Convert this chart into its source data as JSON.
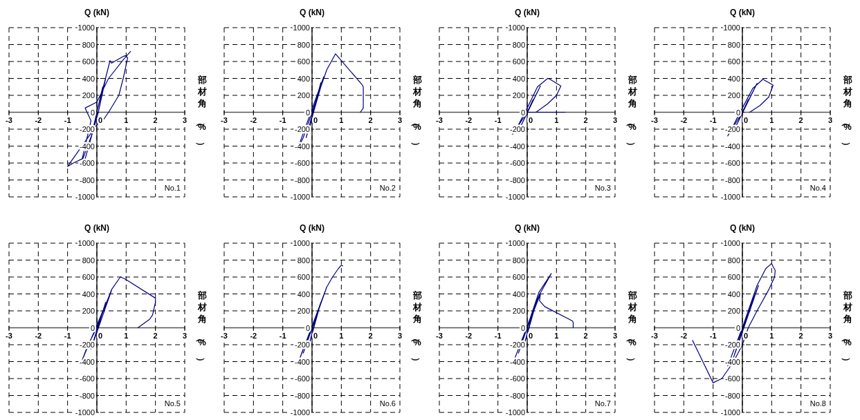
{
  "chart_data": [
    {
      "type": "line",
      "title": "Q (kN)",
      "xlabel": "部材角（%）",
      "annotations": [
        "No.1"
      ],
      "xlim": [
        -3,
        3
      ],
      "xticks": [
        -3,
        -2,
        -1,
        0,
        1,
        2,
        3
      ],
      "ylim": [
        -1000,
        1000
      ],
      "yticks": [
        -1000,
        -800,
        -600,
        -400,
        -200,
        0,
        200,
        400,
        600,
        800,
        1000
      ],
      "grid": true,
      "series": [
        {
          "color": "#000080",
          "x": [
            0,
            0.1,
            0,
            -0.1,
            0,
            0.2,
            0,
            -0.2,
            0.05,
            0.3,
            0.05,
            -0.4,
            -0.5,
            -0.1,
            0,
            0.45,
            0.5,
            0.7,
            0.9,
            1,
            1.05,
            0.9,
            0.75,
            0.4,
            0.2,
            0,
            -1,
            -0.8,
            -0.5,
            -0.2,
            -0.4,
            0,
            0.4,
            0.9,
            1.15
          ],
          "values": [
            0,
            150,
            0,
            -150,
            0,
            300,
            0,
            -300,
            0,
            400,
            0,
            -550,
            -570,
            -200,
            0,
            610,
            580,
            620,
            660,
            670,
            640,
            400,
            200,
            0,
            -100,
            -150,
            -640,
            -600,
            -550,
            -100,
            50,
            120,
            400,
            620,
            720
          ]
        }
      ]
    },
    {
      "type": "line",
      "title": "Q (kN)",
      "xlabel": "部材角（%）",
      "annotations": [
        "No.2"
      ],
      "xlim": [
        -3,
        3
      ],
      "xticks": [
        -3,
        -2,
        -1,
        0,
        1,
        2,
        3
      ],
      "ylim": [
        -1000,
        1000
      ],
      "yticks": [
        -1000,
        -800,
        -600,
        -400,
        -200,
        0,
        200,
        400,
        600,
        800,
        1000
      ],
      "grid": true,
      "series": [
        {
          "color": "#000080",
          "x": [
            0,
            0.2,
            -0.1,
            0.3,
            -0.2,
            0.4,
            -0.5,
            -0.3,
            0,
            0.5,
            0.8,
            1.7,
            1.75,
            1.75,
            1.65
          ],
          "values": [
            0,
            200,
            -200,
            350,
            -300,
            420,
            -440,
            -300,
            0,
            500,
            690,
            330,
            300,
            50,
            0
          ]
        }
      ]
    },
    {
      "type": "line",
      "title": "Q (kN)",
      "xlabel": "部材角（%）",
      "annotations": [
        "No.3"
      ],
      "xlim": [
        -3,
        3
      ],
      "xticks": [
        -3,
        -2,
        -1,
        0,
        1,
        2,
        3
      ],
      "ylim": [
        -1000,
        1000
      ],
      "yticks": [
        -1000,
        -800,
        -600,
        -400,
        -200,
        0,
        200,
        400,
        600,
        800,
        1000
      ],
      "grid": true,
      "series": [
        {
          "color": "#000080",
          "x": [
            0,
            0.2,
            -0.2,
            0.45,
            0,
            -0.5,
            -0.3,
            0,
            0.35,
            0.7,
            0.75,
            1.15,
            1,
            0.7,
            0.3,
            0,
            1.3
          ],
          "values": [
            0,
            150,
            -150,
            310,
            0,
            -260,
            -150,
            50,
            300,
            400,
            395,
            310,
            200,
            100,
            0,
            0,
            0
          ]
        }
      ]
    },
    {
      "type": "line",
      "title": "Q (kN)",
      "xlabel": "部材角（%）",
      "annotations": [
        "No.4"
      ],
      "xlim": [
        -3,
        3
      ],
      "xticks": [
        -3,
        -2,
        -1,
        0,
        1,
        2,
        3
      ],
      "ylim": [
        -1000,
        1000
      ],
      "yticks": [
        -1000,
        -800,
        -600,
        -400,
        -200,
        0,
        200,
        400,
        600,
        800,
        1000
      ],
      "grid": true,
      "series": [
        {
          "color": "#000080",
          "x": [
            0,
            0.2,
            -0.2,
            0.5,
            0,
            -0.5,
            -0.3,
            0,
            0.35,
            0.7,
            1.05,
            0.9,
            0.6,
            0.25
          ],
          "values": [
            0,
            150,
            -150,
            340,
            0,
            -280,
            -150,
            50,
            280,
            390,
            320,
            180,
            80,
            0
          ]
        }
      ]
    },
    {
      "type": "line",
      "title": "Q (kN)",
      "xlabel": "部材角（%）",
      "annotations": [
        "No.5"
      ],
      "xlim": [
        -3,
        3
      ],
      "xticks": [
        -3,
        -2,
        -1,
        0,
        1,
        2,
        3
      ],
      "ylim": [
        -1000,
        1000
      ],
      "yticks": [
        -1000,
        -800,
        -600,
        -400,
        -200,
        0,
        200,
        400,
        600,
        800,
        1000
      ],
      "grid": true,
      "series": [
        {
          "color": "#000080",
          "x": [
            0,
            0.2,
            -0.1,
            0.3,
            -0.2,
            0.5,
            -0.5,
            -0.3,
            0,
            0.5,
            0.8,
            0.95,
            2,
            2,
            1.9,
            1.8,
            1.4
          ],
          "values": [
            0,
            200,
            -150,
            300,
            -250,
            440,
            -380,
            -200,
            0,
            450,
            600,
            580,
            350,
            300,
            150,
            100,
            0
          ]
        }
      ]
    },
    {
      "type": "line",
      "title": "Q (kN)",
      "xlabel": "部材角（%）",
      "annotations": [
        "No.6"
      ],
      "xlim": [
        -3,
        3
      ],
      "xticks": [
        -3,
        -2,
        -1,
        0,
        1,
        2,
        3
      ],
      "ylim": [
        -1000,
        1000
      ],
      "yticks": [
        -1000,
        -800,
        -600,
        -400,
        -200,
        0,
        200,
        400,
        600,
        800,
        1000
      ],
      "grid": true,
      "series": [
        {
          "color": "#000080",
          "x": [
            0,
            0.2,
            -0.1,
            0.3,
            -0.3,
            0.5,
            -0.5,
            -0.3,
            0,
            0.5,
            0.7,
            0.9,
            1,
            1.05
          ],
          "values": [
            0,
            200,
            -200,
            300,
            -300,
            480,
            -440,
            -250,
            0,
            480,
            600,
            700,
            740,
            730
          ]
        }
      ]
    },
    {
      "type": "line",
      "title": "Q (kN)",
      "xlabel": "部材角（%）",
      "annotations": [
        "No.7"
      ],
      "xlim": [
        -3,
        3
      ],
      "xticks": [
        -3,
        -2,
        -1,
        0,
        1,
        2,
        3
      ],
      "ylim": [
        -1000,
        1000
      ],
      "yticks": [
        -1000,
        -800,
        -600,
        -400,
        -200,
        0,
        200,
        400,
        600,
        800,
        1000
      ],
      "grid": true,
      "series": [
        {
          "color": "#000080",
          "x": [
            0,
            0.2,
            -0.1,
            0.35,
            -0.3,
            0.4,
            0.82,
            0.4,
            -0.5,
            -0.3,
            0,
            0.45,
            0.42,
            0.6,
            1.55,
            1.57,
            1.57
          ],
          "values": [
            0,
            200,
            -200,
            350,
            -300,
            420,
            640,
            380,
            -430,
            -250,
            0,
            400,
            320,
            250,
            80,
            60,
            0
          ]
        }
      ]
    },
    {
      "type": "line",
      "title": "Q (kN)",
      "xlabel": "部材角（%）",
      "annotations": [
        "No.8"
      ],
      "xlim": [
        -3,
        3
      ],
      "xticks": [
        -3,
        -2,
        -1,
        0,
        1,
        2,
        3
      ],
      "ylim": [
        -1000,
        1000
      ],
      "yticks": [
        -1000,
        -800,
        -600,
        -400,
        -200,
        0,
        200,
        400,
        600,
        800,
        1000
      ],
      "grid": true,
      "series": [
        {
          "color": "#000080",
          "x": [
            0,
            0.2,
            -0.2,
            0.4,
            -0.3,
            0.55,
            -0.5,
            0,
            0.5,
            0.8,
            1,
            1.05,
            1.12,
            1.1,
            0.9,
            0.5,
            0.2,
            0,
            -0.3,
            -0.7,
            -1,
            -1.7
          ],
          "values": [
            0,
            200,
            -200,
            400,
            -350,
            500,
            -450,
            0,
            500,
            700,
            760,
            720,
            680,
            600,
            450,
            200,
            0,
            -200,
            -400,
            -600,
            -650,
            -150
          ]
        }
      ]
    }
  ]
}
